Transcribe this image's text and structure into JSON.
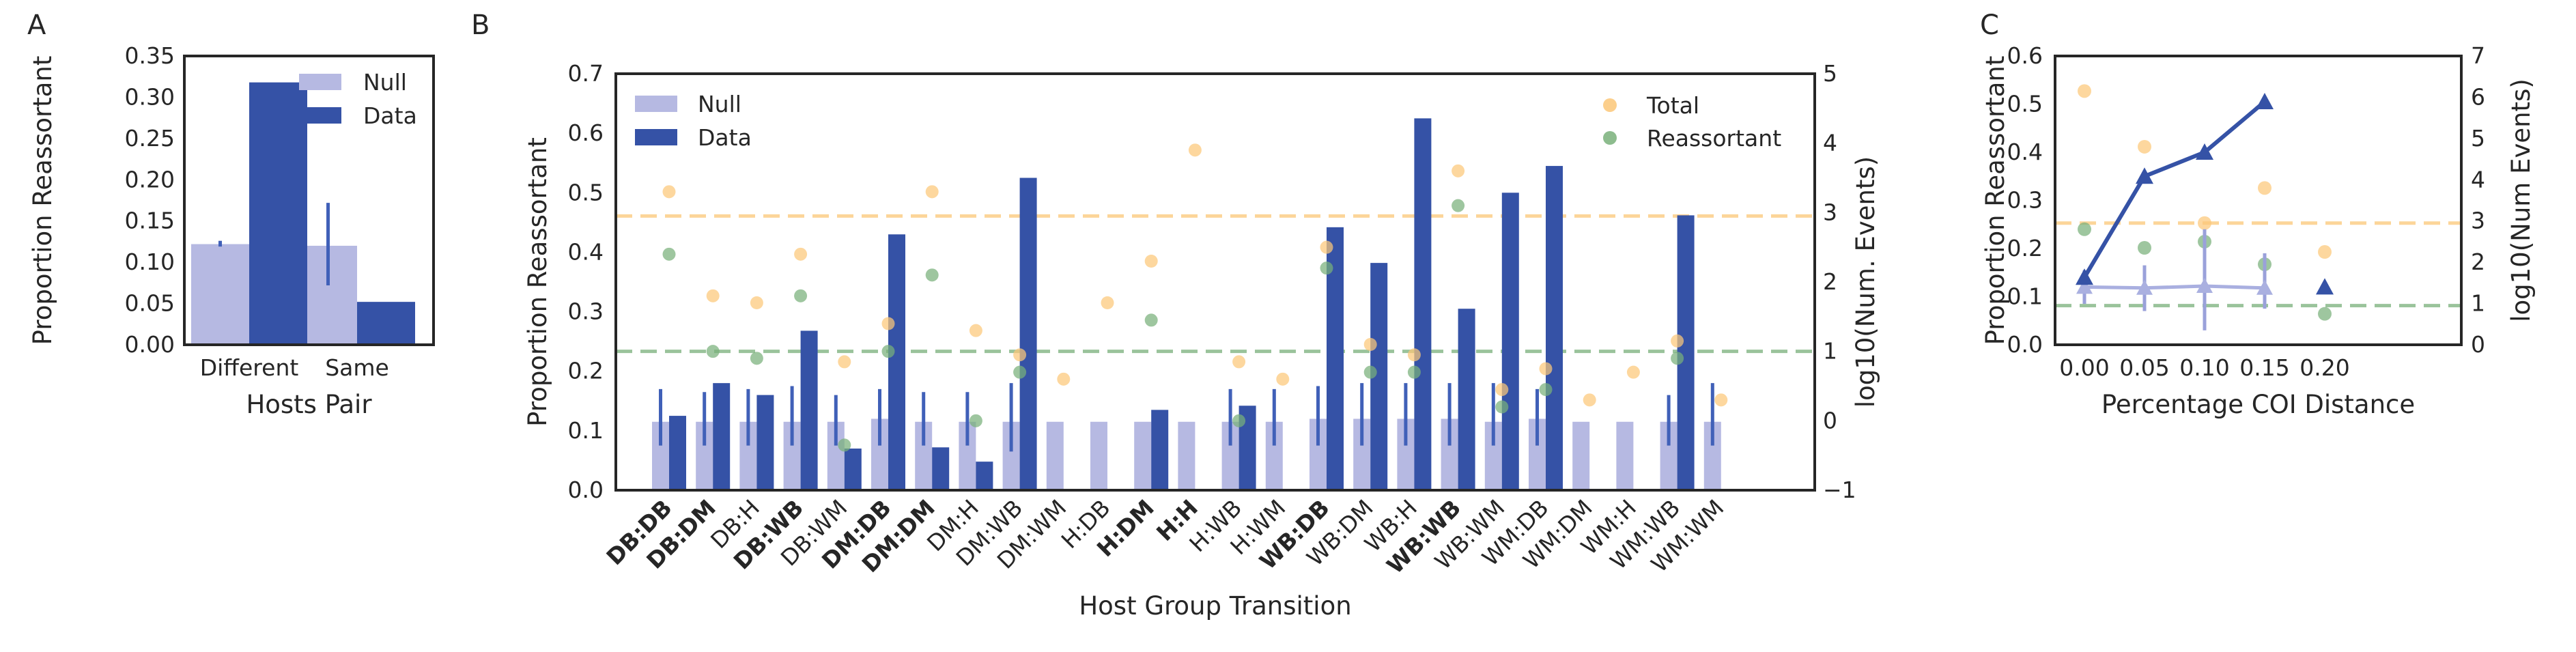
{
  "chart_data": [
    {
      "panel": "A",
      "type": "bar",
      "ylabel": "Proportion Reassortant",
      "xlabel": "Hosts Pair",
      "categories": [
        "Different",
        "Same"
      ],
      "ylim": [
        0,
        0.35
      ],
      "yticks": [
        "0.00",
        "0.05",
        "0.10",
        "0.15",
        "0.20",
        "0.25",
        "0.30",
        "0.35"
      ],
      "series": [
        {
          "name": "Null",
          "values": [
            0.122,
            0.12
          ],
          "err_low": [
            0.119,
            0.072
          ],
          "err_high": [
            0.126,
            0.172
          ]
        },
        {
          "name": "Data",
          "values": [
            0.318,
            0.052
          ]
        }
      ],
      "legend_position": "top-right",
      "grid": false
    },
    {
      "panel": "B",
      "type": "bar",
      "ylabel": "Proportion Reassortant",
      "y2label": "log10(Num. Events)",
      "xlabel": "Host Group Transition",
      "categories": [
        "DB:DB",
        "DB:DM",
        "DB:H",
        "DB:WB",
        "DB:WM",
        "DM:DB",
        "DM:DM",
        "DM:H",
        "DM:WB",
        "DM:WM",
        "H:DB",
        "H:DM",
        "H:H",
        "H:WB",
        "H:WM",
        "WB:DB",
        "WB:DM",
        "WB:H",
        "WB:WB",
        "WB:WM",
        "WM:DB",
        "WM:DM",
        "WM:H",
        "WM:WB",
        "WM:WM"
      ],
      "bold_categories": [
        "DB:DB",
        "DB:DM",
        "DB:WB",
        "DM:DB",
        "DM:DM",
        "H:DM",
        "H:H",
        "WB:DB",
        "WB:WB"
      ],
      "ylim": [
        0,
        0.7
      ],
      "y2lim": [
        -1,
        5
      ],
      "yticks": [
        "0.0",
        "0.1",
        "0.2",
        "0.3",
        "0.4",
        "0.5",
        "0.6",
        "0.7"
      ],
      "y2ticks": [
        "−1",
        "0",
        "1",
        "2",
        "3",
        "4",
        "5"
      ],
      "series": [
        {
          "name": "Null",
          "values": [
            0.115,
            0.115,
            0.115,
            0.115,
            0.115,
            0.12,
            0.115,
            0.115,
            0.115,
            0.115,
            0.115,
            0.115,
            0.115,
            0.115,
            0.115,
            0.12,
            0.12,
            0.12,
            0.12,
            0.115,
            0.12,
            0.115,
            0.115,
            0.115,
            0.115
          ],
          "err_low": [
            0.075,
            0.075,
            0.075,
            0.075,
            0.075,
            0.075,
            0.075,
            0.075,
            0.065,
            null,
            null,
            null,
            null,
            0.075,
            0.075,
            0.075,
            0.075,
            0.075,
            0.075,
            0.075,
            0.075,
            null,
            null,
            0.075,
            0.075
          ],
          "err_high": [
            0.17,
            0.165,
            0.17,
            0.175,
            0.16,
            0.17,
            0.165,
            0.165,
            0.18,
            null,
            null,
            null,
            null,
            0.17,
            0.17,
            0.175,
            0.18,
            0.18,
            0.18,
            0.18,
            0.17,
            null,
            null,
            0.16,
            0.18
          ]
        },
        {
          "name": "Data",
          "values": [
            0.125,
            0.18,
            0.16,
            0.268,
            0.07,
            0.43,
            0.072,
            0.048,
            0.525,
            null,
            null,
            0.135,
            null,
            0.142,
            null,
            0.442,
            0.382,
            0.625,
            0.305,
            0.5,
            0.545,
            null,
            null,
            0.462,
            null
          ]
        },
        {
          "name": "Total",
          "axis": "y2",
          "values": [
            3.3,
            1.8,
            1.7,
            2.4,
            0.85,
            1.4,
            3.3,
            1.3,
            0.95,
            0.6,
            1.7,
            2.3,
            3.9,
            0.85,
            0.6,
            2.5,
            1.1,
            0.95,
            3.6,
            0.45,
            0.75,
            0.3,
            0.7,
            1.15,
            0.3
          ]
        },
        {
          "name": "Reassortant",
          "axis": "y2",
          "values": [
            2.4,
            1.0,
            0.9,
            1.8,
            -0.35,
            1.0,
            2.1,
            0.0,
            0.7,
            null,
            null,
            1.45,
            null,
            0.0,
            null,
            2.2,
            0.7,
            0.7,
            3.1,
            0.2,
            0.45,
            null,
            null,
            0.9,
            null
          ]
        }
      ],
      "reference_lines": [
        {
          "series": "Total",
          "axis": "y2",
          "value": 2.95
        },
        {
          "series": "Reassortant",
          "axis": "y2",
          "value": 1.0
        }
      ],
      "legend_position": "top-left / top-right",
      "grid": false
    },
    {
      "panel": "C",
      "type": "line",
      "ylabel": "Proportion Reassortant",
      "y2label": "log10(Num Events)",
      "xlabel": "Percentage COI Distance",
      "x": [
        0.0,
        0.05,
        0.1,
        0.15,
        0.2
      ],
      "xticks": [
        "0.00",
        "0.05",
        "0.10",
        "0.15",
        "0.20"
      ],
      "ylim": [
        0,
        0.6
      ],
      "y2lim": [
        0,
        7
      ],
      "yticks": [
        "0.0",
        "0.1",
        "0.2",
        "0.3",
        "0.4",
        "0.5",
        "0.6"
      ],
      "y2ticks": [
        "0",
        "1",
        "2",
        "3",
        "4",
        "5",
        "6",
        "7"
      ],
      "series": [
        {
          "name": "Data",
          "values": [
            0.14,
            0.35,
            0.4,
            0.505,
            0.12
          ]
        },
        {
          "name": "Null",
          "values": [
            0.12,
            0.118,
            0.122,
            0.118,
            null
          ],
          "err_low": [
            0.085,
            0.07,
            0.03,
            0.075,
            null
          ],
          "err_high": [
            0.155,
            0.165,
            0.24,
            0.19,
            null
          ]
        },
        {
          "name": "Total",
          "axis": "y2",
          "values": [
            6.15,
            4.8,
            2.95,
            3.8,
            2.25
          ]
        },
        {
          "name": "Reassortant",
          "axis": "y2",
          "values": [
            2.8,
            2.35,
            2.5,
            1.95,
            0.75
          ]
        }
      ],
      "reference_lines": [
        {
          "series": "Total",
          "axis": "y2",
          "value": 2.95
        },
        {
          "series": "Reassortant",
          "axis": "y2",
          "value": 0.95
        }
      ],
      "grid": false
    }
  ],
  "panel_labels": [
    "A",
    "B",
    "C"
  ],
  "legend": {
    "null": "Null",
    "data": "Data",
    "total": "Total",
    "reassortant": "Reassortant"
  },
  "colors": {
    "null_bar": "#b6b9e2",
    "data_bar": "#3552a6",
    "null_err": "#4060b8",
    "total": "#fcc778",
    "reassortant": "#79b07a",
    "axis": "#262626"
  }
}
